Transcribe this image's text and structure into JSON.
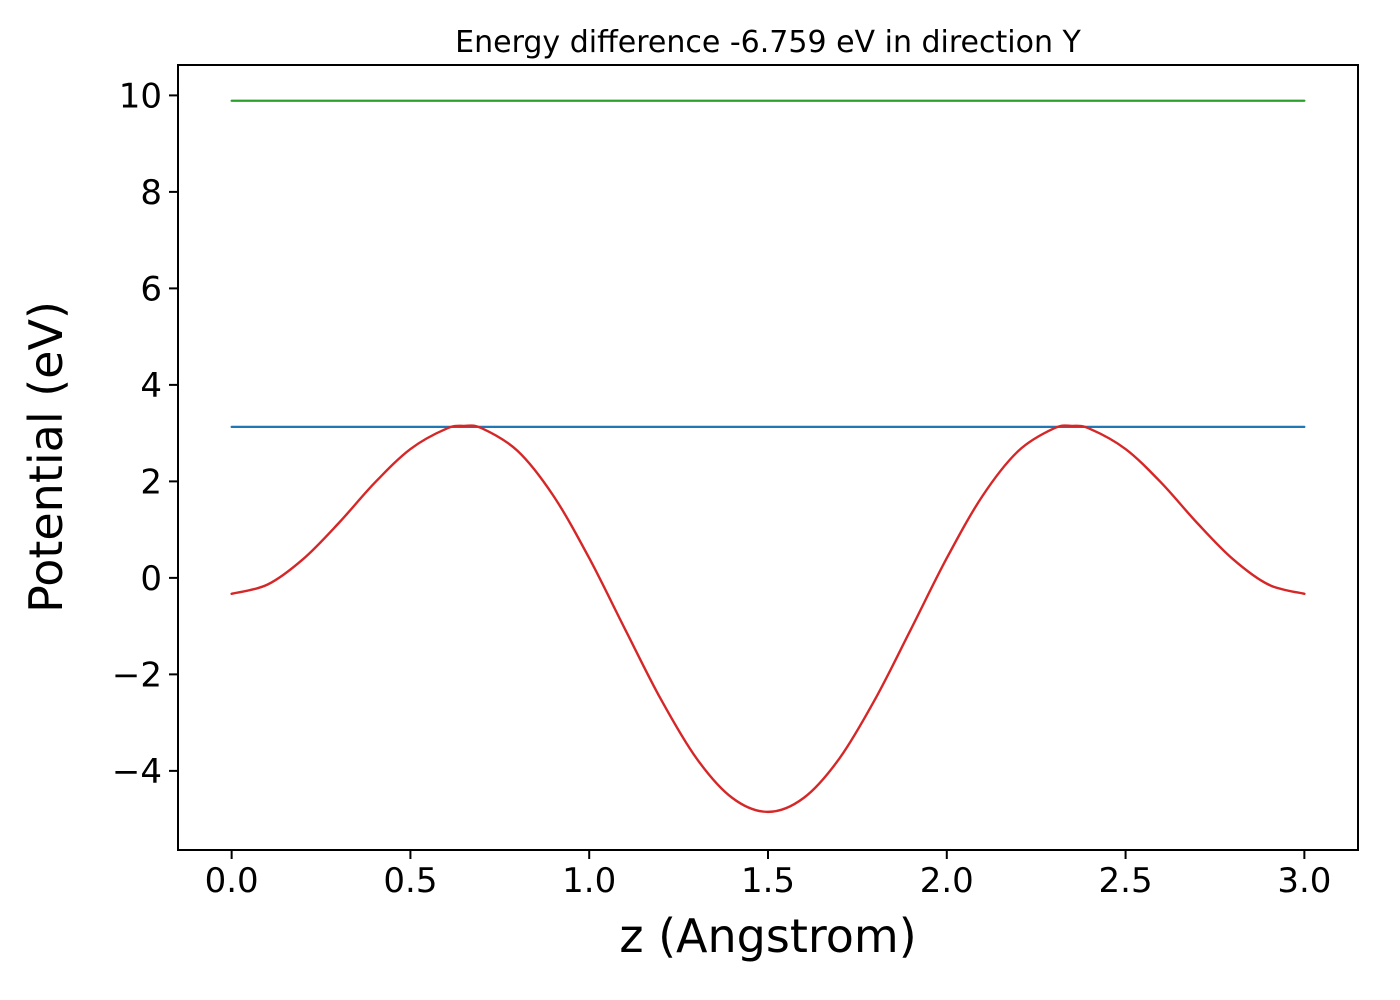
{
  "chart_data": {
    "type": "line",
    "title": "Energy difference -6.759 eV in direction Y",
    "xlabel": "z (Angstrom)",
    "ylabel": "Potential (eV)",
    "xlim": [
      -0.15,
      3.15
    ],
    "ylim": [
      -5.64,
      10.63
    ],
    "grid": false,
    "legend": "none",
    "background_color": "#ffffff",
    "spine_color": "#000000",
    "x_ticks": {
      "values": [
        0.0,
        0.5,
        1.0,
        1.5,
        2.0,
        2.5,
        3.0
      ],
      "labels": [
        "0.0",
        "0.5",
        "1.0",
        "1.5",
        "2.0",
        "2.5",
        "3.0"
      ]
    },
    "y_ticks": {
      "values": [
        -4,
        -2,
        0,
        2,
        4,
        6,
        8,
        10
      ],
      "labels": [
        "−4",
        "−2",
        "0",
        "2",
        "4",
        "6",
        "8",
        "10"
      ]
    },
    "series": [
      {
        "name": "hline-green-upper-level",
        "color": "#2ca02c",
        "line_width": 2.2,
        "smooth": false,
        "x": [
          0.0,
          3.0
        ],
        "y": [
          9.889,
          9.889
        ]
      },
      {
        "name": "hline-blue-lower-level",
        "color": "#1f77b4",
        "line_width": 2.2,
        "smooth": false,
        "x": [
          0.0,
          3.0
        ],
        "y": [
          3.13,
          3.13
        ]
      },
      {
        "name": "potential-curve",
        "color": "#d62728",
        "line_width": 2.4,
        "smooth": true,
        "x": [
          0.0,
          0.1,
          0.2,
          0.3,
          0.4,
          0.5,
          0.6,
          0.65,
          0.7,
          0.8,
          0.9,
          1.0,
          1.1,
          1.2,
          1.3,
          1.4,
          1.5,
          1.6,
          1.7,
          1.8,
          1.9,
          2.0,
          2.1,
          2.2,
          2.3,
          2.35,
          2.4,
          2.5,
          2.6,
          2.7,
          2.8,
          2.9,
          3.0
        ],
        "y": [
          -0.33,
          -0.14,
          0.39,
          1.14,
          1.97,
          2.67,
          3.09,
          3.15,
          3.1,
          2.63,
          1.7,
          0.41,
          -1.06,
          -2.51,
          -3.74,
          -4.56,
          -4.85,
          -4.56,
          -3.74,
          -2.51,
          -1.06,
          0.41,
          1.7,
          2.63,
          3.1,
          3.15,
          3.09,
          2.67,
          1.97,
          1.14,
          0.39,
          -0.14,
          -0.33
        ]
      }
    ]
  }
}
